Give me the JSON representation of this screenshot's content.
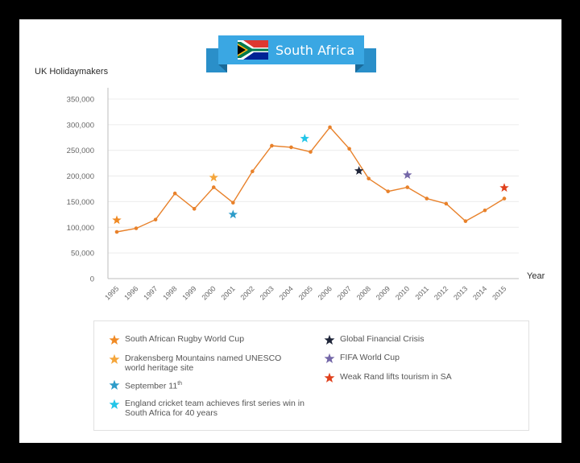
{
  "title": "South Africa",
  "chart_data": {
    "type": "line",
    "ylabel": "UK Holidaymakers",
    "xlabel": "Year",
    "ylim": [
      0,
      350000
    ],
    "yticks": [
      "350,000",
      "300,000",
      "250,000",
      "200,000",
      "150,000",
      "100,000",
      "50,000",
      "0"
    ],
    "ytick_values": [
      350000,
      300000,
      250000,
      200000,
      150000,
      100000,
      50000,
      0
    ],
    "x": [
      "1995",
      "1996",
      "1997",
      "1998",
      "1999",
      "2000",
      "2001",
      "2002",
      "2003",
      "2004",
      "2005",
      "2006",
      "2007",
      "2008",
      "2009",
      "2010",
      "2011",
      "2012",
      "2013",
      "2014",
      "2015"
    ],
    "series": [
      {
        "color": "#e8812a",
        "values": [
          91000,
          98000,
          115000,
          166000,
          136000,
          178000,
          148000,
          209000,
          259000,
          256000,
          247000,
          295000,
          253000,
          195000,
          170000,
          178000,
          156000,
          146000,
          112000,
          133000,
          156000
        ]
      }
    ],
    "events": [
      {
        "x": 1995,
        "y": 114000,
        "color": "#f08a24",
        "label": "South African Rugby World Cup"
      },
      {
        "x": 2000,
        "y": 197000,
        "color": "#f5a63b",
        "label": "Drakensberg Mountains named UNESCO world heritage site"
      },
      {
        "x": 2001,
        "y": 125000,
        "color": "#2d9cc9",
        "label": "September 11",
        "label_sup": "th"
      },
      {
        "x": 2004.7,
        "y": 273000,
        "color": "#22c5e8",
        "label": "England cricket team achieves first series win in South Africa for 40 years"
      },
      {
        "x": 2007.5,
        "y": 210000,
        "color": "#1e2438",
        "label": "Global Financial Crisis"
      },
      {
        "x": 2010,
        "y": 202000,
        "color": "#7467a8",
        "label": "FIFA World Cup"
      },
      {
        "x": 2015,
        "y": 177000,
        "color": "#e0401c",
        "label": "Weak Rand lifts tourism in SA"
      }
    ],
    "grid": true
  },
  "legend": {
    "rugby": "South African Rugby World Cup",
    "drakensberg_line1": "Drakensberg Mountains named UNESCO",
    "drakensberg_line2": "world heritage site",
    "sept11": "September 11",
    "sept11_sup": "th",
    "cricket_line1": "England cricket team achieves first series win in",
    "cricket_line2": "South Africa for 40 years",
    "gfc": "Global Financial Crisis",
    "fifa": "FIFA World Cup",
    "rand": "Weak Rand lifts tourism in SA"
  }
}
